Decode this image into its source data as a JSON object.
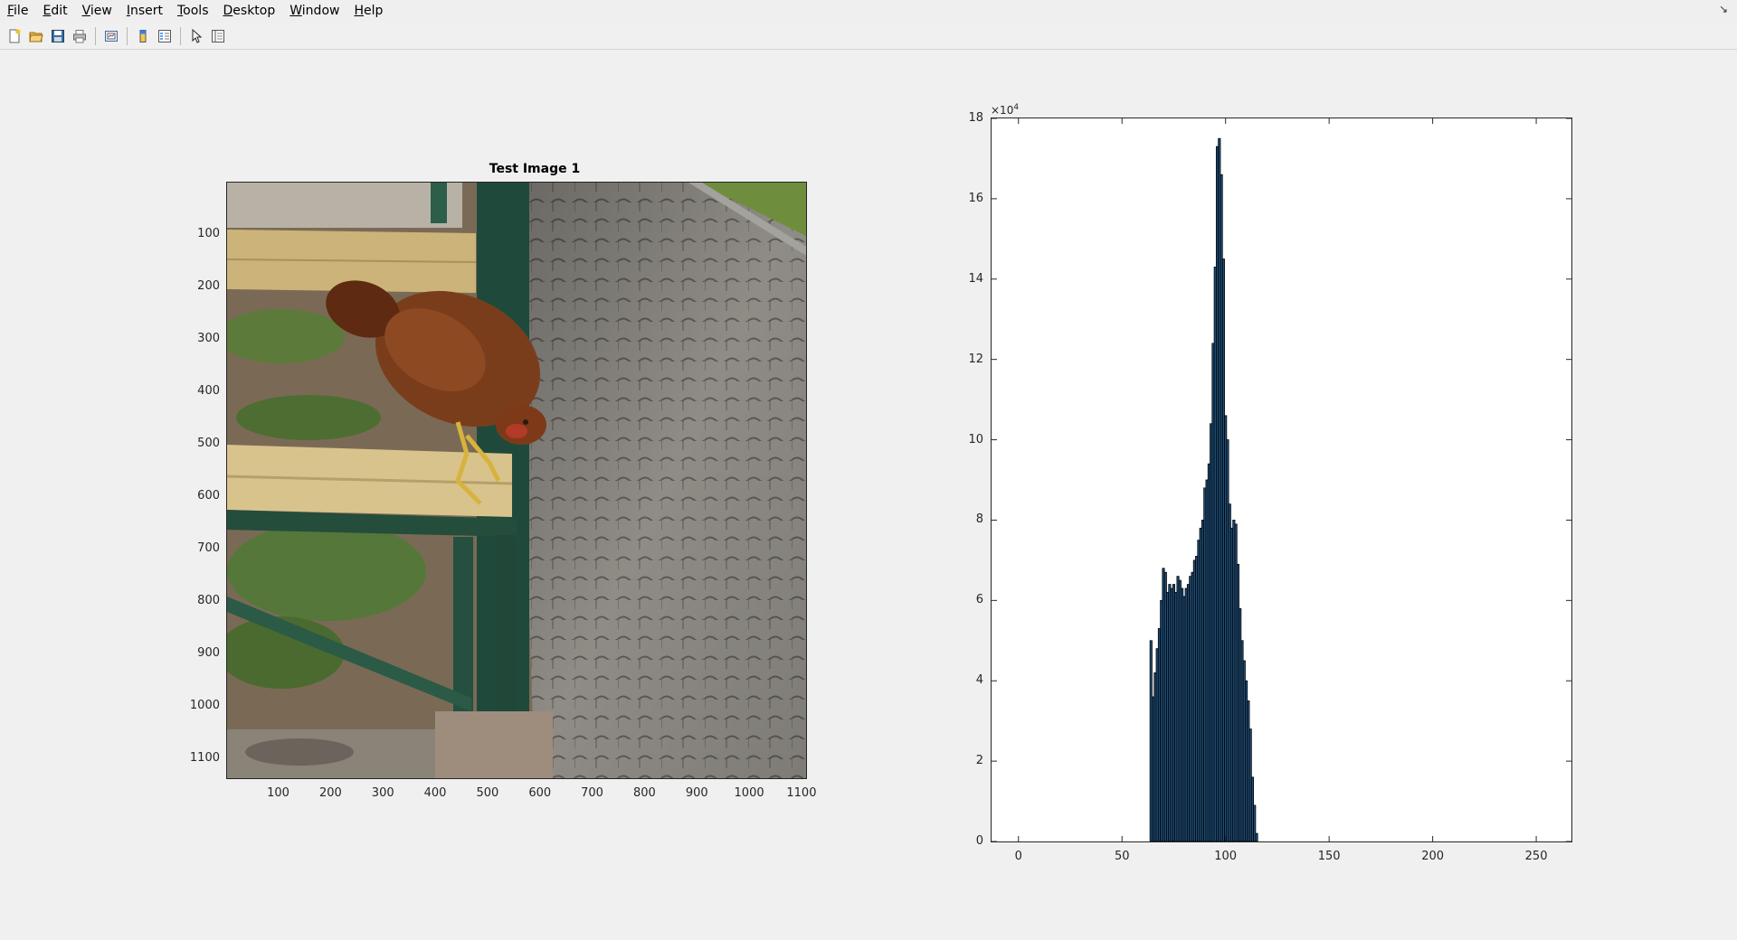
{
  "menubar": {
    "items": [
      "File",
      "Edit",
      "View",
      "Insert",
      "Tools",
      "Desktop",
      "Window",
      "Help"
    ],
    "mnemonics": [
      "F",
      "E",
      "V",
      "I",
      "T",
      "D",
      "W",
      "H"
    ]
  },
  "toolbar": {
    "buttons": [
      "new-figure-icon",
      "open-file-icon",
      "save-figure-icon",
      "print-figure-icon",
      "link-plot-icon",
      "insert-colorbar-icon",
      "insert-legend-icon",
      "edit-plot-icon",
      "property-inspector-icon"
    ]
  },
  "image_axes": {
    "title": "Test Image 1",
    "x_ticks": [
      "100",
      "200",
      "300",
      "400",
      "500",
      "600",
      "700",
      "800",
      "900",
      "1000",
      "1100"
    ],
    "y_ticks": [
      "100",
      "200",
      "300",
      "400",
      "500",
      "600",
      "700",
      "800",
      "900",
      "1000",
      "1100"
    ],
    "xlim": [
      0.5,
      1110.5
    ],
    "ylim": [
      0.5,
      1140.5
    ]
  },
  "chart_data": {
    "type": "bar",
    "title": "",
    "xlabel": "",
    "ylabel": "",
    "xlim": [
      -13,
      267
    ],
    "ylim": [
      0,
      180000
    ],
    "x_ticks": [
      "0",
      "50",
      "100",
      "150",
      "200",
      "250"
    ],
    "y_ticks": [
      "0",
      "2",
      "4",
      "6",
      "8",
      "10",
      "12",
      "14",
      "16",
      "18"
    ],
    "y_exponent_label": "×10",
    "y_exponent": "4",
    "bar_color": "#1f4e79",
    "bar_edge": "#000000",
    "x": [
      64,
      65,
      66,
      67,
      68,
      69,
      70,
      71,
      72,
      73,
      74,
      75,
      76,
      77,
      78,
      79,
      80,
      81,
      82,
      83,
      84,
      85,
      86,
      87,
      88,
      89,
      90,
      91,
      92,
      93,
      94,
      95,
      96,
      97,
      98,
      99,
      100,
      101,
      102,
      103,
      104,
      105,
      106,
      107,
      108,
      109,
      110,
      111,
      112,
      113,
      114,
      115
    ],
    "values": [
      50000,
      36000,
      42000,
      48000,
      53000,
      60000,
      68000,
      67000,
      62000,
      64000,
      63000,
      64000,
      62000,
      66000,
      65000,
      63000,
      61000,
      63000,
      64000,
      66000,
      67000,
      70000,
      71000,
      75000,
      78000,
      80000,
      88000,
      90000,
      94000,
      104000,
      124000,
      143000,
      173000,
      175000,
      166000,
      145000,
      106000,
      100000,
      84000,
      78000,
      80000,
      79000,
      69000,
      58000,
      50000,
      45000,
      40000,
      35000,
      28000,
      16000,
      9000,
      2000
    ]
  }
}
